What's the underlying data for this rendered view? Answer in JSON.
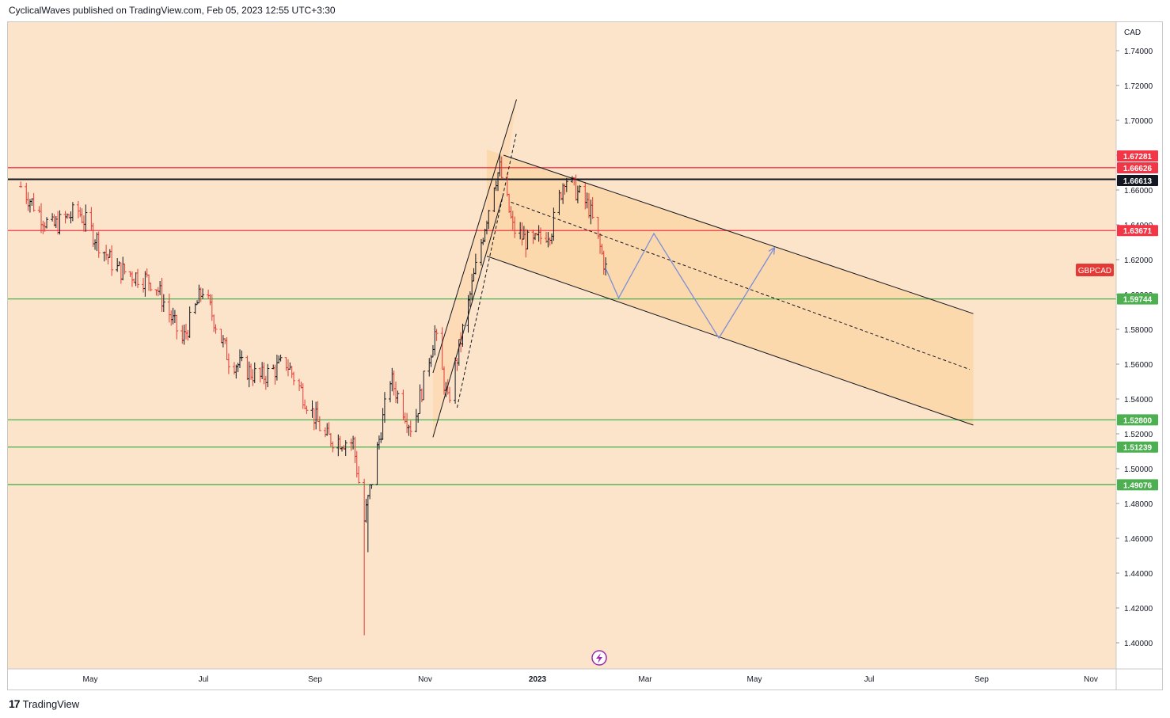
{
  "header": {
    "attribution": "CyclicalWaves published on TradingView.com, Feb 05, 2023 12:55 UTC+3:30"
  },
  "footer": {
    "brand": "TradingView",
    "logo_text": "17"
  },
  "colors": {
    "background": "#fce4ca",
    "channel_fill": "#fbd6a8",
    "candle_up": "#131722",
    "candle_down": "#e53935",
    "resistance": "#f23645",
    "support": "#4caf50",
    "key_level": "#131722",
    "projection": "#7b8ed8",
    "symbol_tag": "#e53935"
  },
  "chart_data": {
    "type": "ohlc",
    "symbol": "GBPCAD",
    "currency": "CAD",
    "y_ticks": [
      "1.74000",
      "1.72000",
      "1.70000",
      "1.68000",
      "1.66000",
      "1.64000",
      "1.62000",
      "1.60000",
      "1.58000",
      "1.56000",
      "1.54000",
      "1.52000",
      "1.50000",
      "1.48000",
      "1.46000",
      "1.44000",
      "1.42000",
      "1.40000"
    ],
    "x_labels": [
      "May",
      "Jul",
      "Sep",
      "Nov",
      "2023",
      "Mar",
      "May",
      "Jul",
      "Sep",
      "Nov"
    ],
    "horizontal_levels": [
      {
        "value": 1.67281,
        "label": "1.67281",
        "kind": "resistance"
      },
      {
        "value": 1.66626,
        "label": "1.66626",
        "kind": "resistance"
      },
      {
        "value": 1.66613,
        "label": "1.66613",
        "kind": "key"
      },
      {
        "value": 1.63671,
        "label": "1.63671",
        "kind": "resistance"
      },
      {
        "value": 1.59744,
        "label": "1.59744",
        "kind": "support"
      },
      {
        "value": 1.528,
        "label": "1.52800",
        "kind": "support"
      },
      {
        "value": 1.51239,
        "label": "1.51239",
        "kind": "support"
      },
      {
        "value": 1.49076,
        "label": "1.49076",
        "kind": "support"
      }
    ],
    "price_path": [
      [
        "2022-03-25",
        1.662
      ],
      [
        "2022-04-10",
        1.638
      ],
      [
        "2022-04-25",
        1.648
      ],
      [
        "2022-05-15",
        1.615
      ],
      [
        "2022-06-05",
        1.607
      ],
      [
        "2022-06-20",
        1.573
      ],
      [
        "2022-07-01",
        1.603
      ],
      [
        "2022-07-15",
        1.563
      ],
      [
        "2022-08-01",
        1.552
      ],
      [
        "2022-08-15",
        1.561
      ],
      [
        "2022-09-05",
        1.518
      ],
      [
        "2022-09-20",
        1.515
      ],
      [
        "2022-09-26",
        1.47
      ],
      [
        "2022-10-10",
        1.552
      ],
      [
        "2022-10-22",
        1.522
      ],
      [
        "2022-11-03",
        1.578
      ],
      [
        "2022-11-10",
        1.538
      ],
      [
        "2022-11-25",
        1.615
      ],
      [
        "2022-12-05",
        1.665
      ],
      [
        "2022-12-08",
        1.672
      ],
      [
        "2022-12-15",
        1.638
      ],
      [
        "2022-12-25",
        1.628
      ],
      [
        "2023-01-05",
        1.638
      ],
      [
        "2023-01-12",
        1.668
      ],
      [
        "2023-01-25",
        1.65
      ],
      [
        "2023-02-03",
        1.615
      ]
    ],
    "notable_wicks": [
      {
        "date": "2022-09-26",
        "low": 1.4043
      },
      {
        "date": "2022-09-28",
        "low": 1.452
      }
    ],
    "projection_path": [
      [
        "2023-02-03",
        1.615
      ],
      [
        "2023-02-10",
        1.598
      ],
      [
        "2023-03-01",
        1.635
      ],
      [
        "2023-04-05",
        1.575
      ],
      [
        "2023-05-05",
        1.627
      ]
    ],
    "rising_channel": {
      "upper": [
        [
          "2022-11-02",
          1.555
        ],
        [
          "2022-12-17",
          1.712
        ]
      ],
      "lower": [
        [
          "2022-11-02",
          1.518
        ],
        [
          "2022-12-10",
          1.658
        ]
      ],
      "mid": [
        [
          "2022-11-15",
          1.535
        ],
        [
          "2022-12-17",
          1.693
        ]
      ]
    },
    "falling_channel": {
      "upper": [
        [
          "2022-12-10",
          1.68
        ],
        [
          "2023-08-20",
          1.589
        ]
      ],
      "mid": [
        [
          "2022-12-14",
          1.653
        ],
        [
          "2023-08-18",
          1.557
        ]
      ],
      "lower": [
        [
          "2022-12-01",
          1.622
        ],
        [
          "2023-08-20",
          1.525
        ]
      ],
      "fill_left": "2022-12-01",
      "fill_right": "2023-08-20"
    }
  }
}
